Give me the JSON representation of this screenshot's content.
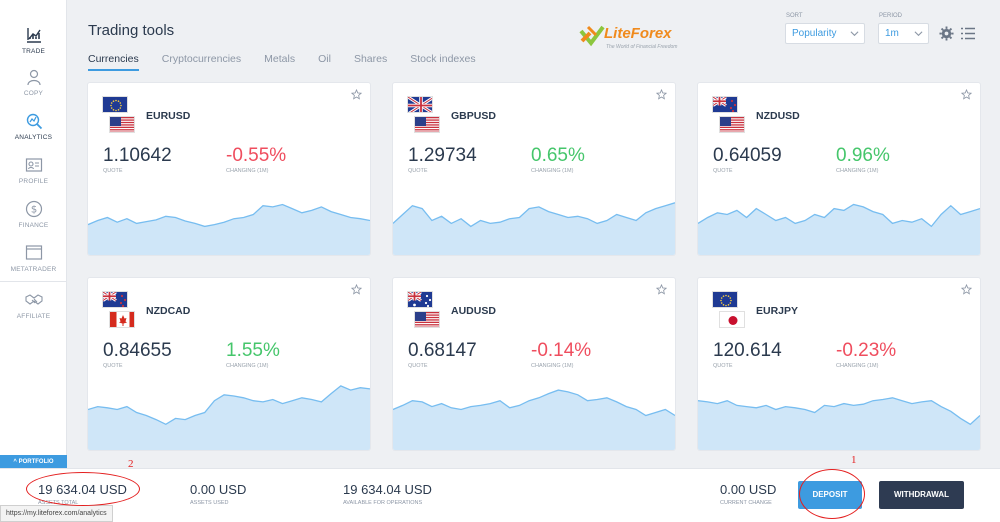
{
  "sidebar": {
    "items": [
      {
        "label": "TRADE",
        "icon": "trade-chart-icon"
      },
      {
        "label": "COPY",
        "icon": "copy-user-icon"
      },
      {
        "label": "ANALYTICS",
        "icon": "analytics-icon"
      },
      {
        "label": "PROFILE",
        "icon": "profile-card-icon"
      },
      {
        "label": "FINANCE",
        "icon": "dollar-icon"
      },
      {
        "label": "METATRADER",
        "icon": "window-icon"
      },
      {
        "label": "AFFILIATE",
        "icon": "handshake-icon"
      }
    ],
    "portfolio_label": "PORTFOLIO"
  },
  "header": {
    "title": "Trading tools",
    "tabs": [
      "Currencies",
      "Cryptocurrencies",
      "Metals",
      "Oil",
      "Shares",
      "Stock indexes"
    ],
    "active_tab": "Currencies",
    "logo_text": "LiteForex",
    "logo_tagline": "The World of Financial Freedom",
    "sort_label": "SORT",
    "sort_value": "Popularity",
    "period_label": "PERIOD",
    "period_value": "1m"
  },
  "cards": [
    {
      "pair": "EURUSD",
      "quote": "1.10642",
      "quote_label": "QUOTE",
      "change": "-0.55%",
      "change_label": "CHANGING (1M)",
      "direction": "neg",
      "flags": [
        "eu",
        "us"
      ],
      "spark": [
        0.62,
        0.55,
        0.5,
        0.58,
        0.52,
        0.6,
        0.57,
        0.54,
        0.48,
        0.5,
        0.56,
        0.6,
        0.65,
        0.62,
        0.58,
        0.52,
        0.5,
        0.45,
        0.3,
        0.32,
        0.28,
        0.35,
        0.42,
        0.38,
        0.32,
        0.4,
        0.45,
        0.5,
        0.52,
        0.55
      ]
    },
    {
      "pair": "GBPUSD",
      "quote": "1.29734",
      "quote_label": "QUOTE",
      "change": "0.65%",
      "change_label": "CHANGING (1M)",
      "direction": "pos",
      "flags": [
        "gb",
        "us"
      ],
      "spark": [
        0.6,
        0.45,
        0.3,
        0.35,
        0.55,
        0.48,
        0.6,
        0.52,
        0.65,
        0.55,
        0.6,
        0.58,
        0.52,
        0.5,
        0.35,
        0.32,
        0.4,
        0.45,
        0.5,
        0.48,
        0.52,
        0.6,
        0.55,
        0.45,
        0.5,
        0.55,
        0.42,
        0.35,
        0.3,
        0.25
      ]
    },
    {
      "pair": "NZDUSD",
      "quote": "0.64059",
      "quote_label": "QUOTE",
      "change": "0.96%",
      "change_label": "CHANGING (1M)",
      "direction": "pos",
      "flags": [
        "nz",
        "us"
      ],
      "spark": [
        0.6,
        0.5,
        0.42,
        0.45,
        0.38,
        0.5,
        0.35,
        0.45,
        0.55,
        0.5,
        0.6,
        0.55,
        0.45,
        0.5,
        0.35,
        0.38,
        0.28,
        0.32,
        0.4,
        0.45,
        0.6,
        0.55,
        0.58,
        0.52,
        0.65,
        0.45,
        0.3,
        0.45,
        0.4,
        0.35
      ]
    },
    {
      "pair": "NZDCAD",
      "quote": "0.84655",
      "quote_label": "QUOTE",
      "change": "1.55%",
      "change_label": "CHANGING (1M)",
      "direction": "pos",
      "flags": [
        "nz",
        "ca"
      ],
      "spark": [
        0.45,
        0.4,
        0.42,
        0.45,
        0.4,
        0.5,
        0.55,
        0.62,
        0.7,
        0.6,
        0.62,
        0.55,
        0.5,
        0.3,
        0.2,
        0.22,
        0.25,
        0.3,
        0.32,
        0.28,
        0.35,
        0.3,
        0.25,
        0.28,
        0.32,
        0.18,
        0.05,
        0.12,
        0.08,
        0.1
      ]
    },
    {
      "pair": "AUDUSD",
      "quote": "0.68147",
      "quote_label": "QUOTE",
      "change": "-0.14%",
      "change_label": "CHANGING (1M)",
      "direction": "neg",
      "flags": [
        "au",
        "us"
      ],
      "spark": [
        0.45,
        0.38,
        0.3,
        0.32,
        0.4,
        0.35,
        0.42,
        0.45,
        0.4,
        0.38,
        0.35,
        0.3,
        0.42,
        0.38,
        0.3,
        0.25,
        0.18,
        0.12,
        0.15,
        0.2,
        0.3,
        0.28,
        0.25,
        0.32,
        0.4,
        0.45,
        0.55,
        0.5,
        0.45,
        0.55
      ]
    },
    {
      "pair": "EURJPY",
      "quote": "120.614",
      "quote_label": "QUOTE",
      "change": "-0.23%",
      "change_label": "CHANGING (1M)",
      "direction": "neg",
      "flags": [
        "eu",
        "jp"
      ],
      "spark": [
        0.3,
        0.32,
        0.35,
        0.3,
        0.38,
        0.4,
        0.42,
        0.38,
        0.45,
        0.4,
        0.42,
        0.45,
        0.5,
        0.38,
        0.4,
        0.35,
        0.38,
        0.36,
        0.3,
        0.28,
        0.25,
        0.3,
        0.35,
        0.32,
        0.3,
        0.4,
        0.48,
        0.6,
        0.7,
        0.55
      ]
    }
  ],
  "footer": {
    "assets_total_value": "19 634.04 USD",
    "assets_total_label": "ASSETS TOTAL",
    "assets_used_value": "0.00 USD",
    "assets_used_label": "ASSETS USED",
    "available_value": "19 634.04 USD",
    "available_label": "AVAILABLE FOR OPERATIONS",
    "current_change_value": "0.00 USD",
    "current_change_label": "CURRENT CHANGE",
    "deposit_label": "DEPOSIT",
    "withdrawal_label": "WITHDRAWAL"
  },
  "status_url": "https://my.liteforex.com/analytics",
  "annotations": {
    "mark1": "1",
    "mark2": "2",
    "color": "#e42020"
  },
  "colors": {
    "accent": "#3d9be0",
    "negative": "#ef4d5e",
    "positive": "#45c66b",
    "dark_button": "#2e3b52",
    "spark_fill": "#cfe6f8",
    "spark_line": "#77bdf0"
  }
}
